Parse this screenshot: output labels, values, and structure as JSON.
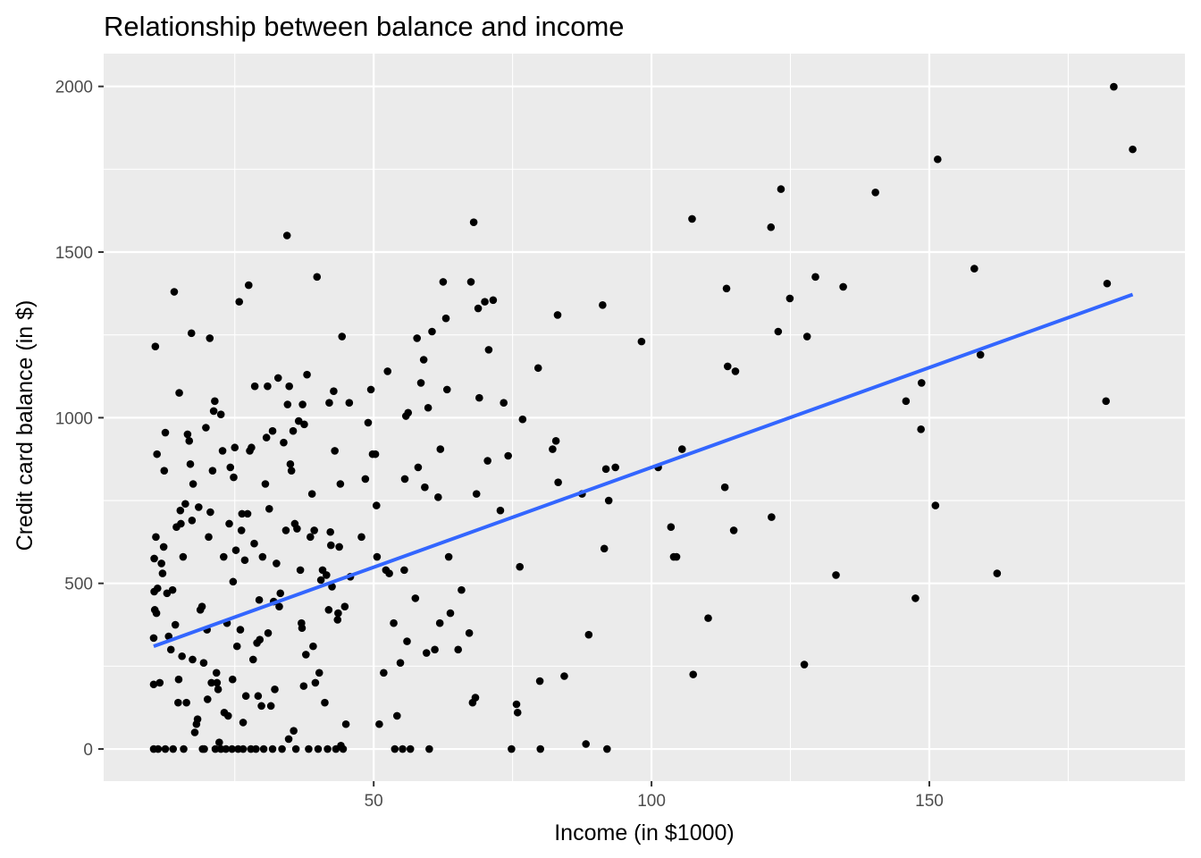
{
  "chart_data": {
    "type": "scatter",
    "title": "Relationship between balance and income",
    "xlabel": "Income (in $1000)",
    "ylabel": "Credit card balance (in $)",
    "xlim": [
      1.4,
      196.0
    ],
    "ylim": [
      -97,
      2099
    ],
    "x_ticks": [
      50,
      100,
      150
    ],
    "y_ticks": [
      0,
      500,
      1000,
      1500,
      2000
    ],
    "grid": true,
    "legend": "none",
    "colors": {
      "panel": "#ebebeb",
      "grid": "#ffffff",
      "point": "#000000",
      "fit_line": "#3366ff",
      "tick_text": "#4d4d4d"
    },
    "fit_line": {
      "x": [
        10.4,
        186.6
      ],
      "y": [
        310,
        1372
      ]
    },
    "points": [
      [
        10.4,
        335
      ],
      [
        10.4,
        195
      ],
      [
        10.4,
        0
      ],
      [
        10.5,
        575
      ],
      [
        10.5,
        475
      ],
      [
        10.6,
        420
      ],
      [
        10.7,
        1215
      ],
      [
        10.8,
        640
      ],
      [
        10.9,
        410
      ],
      [
        11.0,
        890
      ],
      [
        11.1,
        485
      ],
      [
        11.2,
        0
      ],
      [
        11.5,
        200
      ],
      [
        11.8,
        560
      ],
      [
        12.0,
        530
      ],
      [
        12.2,
        610
      ],
      [
        12.3,
        840
      ],
      [
        12.5,
        955
      ],
      [
        12.5,
        0
      ],
      [
        12.8,
        470
      ],
      [
        13.1,
        340
      ],
      [
        13.5,
        300
      ],
      [
        13.8,
        480
      ],
      [
        13.9,
        0
      ],
      [
        14.1,
        1380
      ],
      [
        14.3,
        375
      ],
      [
        14.5,
        670
      ],
      [
        14.8,
        140
      ],
      [
        14.9,
        210
      ],
      [
        15.0,
        1075
      ],
      [
        15.2,
        720
      ],
      [
        15.3,
        680
      ],
      [
        15.5,
        280
      ],
      [
        15.7,
        580
      ],
      [
        15.8,
        0
      ],
      [
        16.1,
        740
      ],
      [
        16.3,
        140
      ],
      [
        16.5,
        950
      ],
      [
        16.8,
        930
      ],
      [
        17.0,
        860
      ],
      [
        17.2,
        1255
      ],
      [
        17.3,
        690
      ],
      [
        17.4,
        270
      ],
      [
        17.5,
        800
      ],
      [
        17.8,
        50
      ],
      [
        18.1,
        75
      ],
      [
        18.3,
        90
      ],
      [
        18.5,
        730
      ],
      [
        18.8,
        420
      ],
      [
        19.1,
        430
      ],
      [
        19.2,
        0
      ],
      [
        19.4,
        260
      ],
      [
        19.5,
        0
      ],
      [
        19.8,
        970
      ],
      [
        20.0,
        360
      ],
      [
        20.1,
        150
      ],
      [
        20.3,
        640
      ],
      [
        20.5,
        1240
      ],
      [
        20.6,
        715
      ],
      [
        20.8,
        200
      ],
      [
        21.0,
        840
      ],
      [
        21.2,
        1020
      ],
      [
        21.4,
        1050
      ],
      [
        21.5,
        0
      ],
      [
        21.7,
        230
      ],
      [
        21.8,
        200
      ],
      [
        22.0,
        180
      ],
      [
        22.2,
        20
      ],
      [
        22.5,
        1010
      ],
      [
        22.5,
        0
      ],
      [
        22.8,
        900
      ],
      [
        23.0,
        580
      ],
      [
        23.1,
        110
      ],
      [
        23.4,
        0
      ],
      [
        23.6,
        380
      ],
      [
        23.8,
        100
      ],
      [
        24.0,
        680
      ],
      [
        24.2,
        850
      ],
      [
        24.5,
        0
      ],
      [
        24.6,
        210
      ],
      [
        24.7,
        505
      ],
      [
        24.8,
        820
      ],
      [
        25.0,
        910
      ],
      [
        25.2,
        600
      ],
      [
        25.4,
        310
      ],
      [
        25.6,
        0
      ],
      [
        25.8,
        1350
      ],
      [
        26.0,
        360
      ],
      [
        26.2,
        660
      ],
      [
        26.3,
        710
      ],
      [
        26.5,
        80
      ],
      [
        26.5,
        0
      ],
      [
        26.8,
        570
      ],
      [
        27.0,
        160
      ],
      [
        27.3,
        710
      ],
      [
        27.5,
        1400
      ],
      [
        27.7,
        900
      ],
      [
        27.9,
        0
      ],
      [
        28.0,
        910
      ],
      [
        28.3,
        270
      ],
      [
        28.5,
        620
      ],
      [
        28.6,
        1095
      ],
      [
        28.8,
        0
      ],
      [
        29.0,
        320
      ],
      [
        29.2,
        160
      ],
      [
        29.4,
        450
      ],
      [
        29.5,
        330
      ],
      [
        29.8,
        130
      ],
      [
        30.0,
        580
      ],
      [
        30.2,
        0
      ],
      [
        30.5,
        800
      ],
      [
        30.7,
        940
      ],
      [
        30.9,
        1095
      ],
      [
        31.0,
        350
      ],
      [
        31.2,
        725
      ],
      [
        31.5,
        130
      ],
      [
        31.8,
        960
      ],
      [
        31.8,
        0
      ],
      [
        32.0,
        445
      ],
      [
        32.2,
        180
      ],
      [
        32.5,
        560
      ],
      [
        32.8,
        1120
      ],
      [
        33.0,
        430
      ],
      [
        33.2,
        470
      ],
      [
        33.5,
        0
      ],
      [
        33.8,
        925
      ],
      [
        34.2,
        660
      ],
      [
        34.4,
        1550
      ],
      [
        34.5,
        1040
      ],
      [
        34.7,
        30
      ],
      [
        34.8,
        1095
      ],
      [
        35.0,
        860
      ],
      [
        35.2,
        840
      ],
      [
        35.5,
        960
      ],
      [
        35.6,
        55
      ],
      [
        35.8,
        680
      ],
      [
        36.0,
        0
      ],
      [
        36.2,
        665
      ],
      [
        36.5,
        990
      ],
      [
        36.8,
        540
      ],
      [
        37.0,
        380
      ],
      [
        37.1,
        365
      ],
      [
        37.2,
        1040
      ],
      [
        37.4,
        190
      ],
      [
        37.5,
        980
      ],
      [
        37.8,
        285
      ],
      [
        38.0,
        1130
      ],
      [
        38.3,
        0
      ],
      [
        38.6,
        640
      ],
      [
        38.9,
        770
      ],
      [
        39.1,
        310
      ],
      [
        39.3,
        660
      ],
      [
        39.5,
        200
      ],
      [
        39.8,
        1425
      ],
      [
        40.0,
        0
      ],
      [
        40.2,
        230
      ],
      [
        40.5,
        510
      ],
      [
        40.8,
        540
      ],
      [
        41.2,
        140
      ],
      [
        41.5,
        525
      ],
      [
        41.7,
        0
      ],
      [
        41.9,
        420
      ],
      [
        42.0,
        1045
      ],
      [
        42.2,
        655
      ],
      [
        42.3,
        615
      ],
      [
        42.5,
        490
      ],
      [
        42.8,
        1080
      ],
      [
        43.0,
        900
      ],
      [
        43.2,
        0
      ],
      [
        43.5,
        390
      ],
      [
        43.6,
        410
      ],
      [
        43.8,
        610
      ],
      [
        44.0,
        800
      ],
      [
        44.1,
        10
      ],
      [
        44.3,
        1245
      ],
      [
        44.5,
        0
      ],
      [
        44.8,
        430
      ],
      [
        45.0,
        75
      ],
      [
        45.6,
        1045
      ],
      [
        45.8,
        520
      ],
      [
        47.8,
        640
      ],
      [
        48.5,
        815
      ],
      [
        49.0,
        985
      ],
      [
        49.5,
        1085
      ],
      [
        49.8,
        890
      ],
      [
        50.3,
        890
      ],
      [
        50.5,
        735
      ],
      [
        50.6,
        580
      ],
      [
        51.0,
        75
      ],
      [
        51.8,
        230
      ],
      [
        52.2,
        540
      ],
      [
        52.5,
        1140
      ],
      [
        52.8,
        530
      ],
      [
        53.6,
        380
      ],
      [
        53.8,
        0
      ],
      [
        54.2,
        100
      ],
      [
        54.8,
        260
      ],
      [
        55.2,
        0
      ],
      [
        55.5,
        540
      ],
      [
        55.6,
        815
      ],
      [
        55.8,
        1005
      ],
      [
        56.0,
        325
      ],
      [
        56.2,
        1015
      ],
      [
        56.6,
        0
      ],
      [
        57.5,
        455
      ],
      [
        57.8,
        1240
      ],
      [
        58.0,
        850
      ],
      [
        58.5,
        1105
      ],
      [
        59.0,
        1175
      ],
      [
        59.2,
        790
      ],
      [
        59.5,
        290
      ],
      [
        59.8,
        1030
      ],
      [
        60.0,
        0
      ],
      [
        60.5,
        1260
      ],
      [
        61.0,
        300
      ],
      [
        61.6,
        760
      ],
      [
        61.9,
        380
      ],
      [
        62.0,
        905
      ],
      [
        62.5,
        1410
      ],
      [
        63.0,
        1300
      ],
      [
        63.2,
        1085
      ],
      [
        63.5,
        580
      ],
      [
        63.8,
        410
      ],
      [
        65.2,
        300
      ],
      [
        65.8,
        480
      ],
      [
        67.2,
        350
      ],
      [
        67.5,
        1410
      ],
      [
        67.8,
        140
      ],
      [
        68.0,
        1590
      ],
      [
        68.3,
        155
      ],
      [
        68.5,
        770
      ],
      [
        68.8,
        1330
      ],
      [
        69.0,
        1060
      ],
      [
        70.0,
        1350
      ],
      [
        70.5,
        870
      ],
      [
        70.7,
        1205
      ],
      [
        71.5,
        1355
      ],
      [
        72.8,
        720
      ],
      [
        73.4,
        1045
      ],
      [
        74.2,
        885
      ],
      [
        74.8,
        0
      ],
      [
        75.7,
        135
      ],
      [
        75.9,
        110
      ],
      [
        76.3,
        550
      ],
      [
        76.8,
        995
      ],
      [
        79.6,
        1150
      ],
      [
        79.9,
        205
      ],
      [
        80.0,
        0
      ],
      [
        82.2,
        905
      ],
      [
        82.8,
        930
      ],
      [
        83.1,
        1310
      ],
      [
        83.2,
        805
      ],
      [
        84.3,
        220
      ],
      [
        87.5,
        770
      ],
      [
        88.2,
        15
      ],
      [
        88.7,
        345
      ],
      [
        91.2,
        1340
      ],
      [
        91.5,
        605
      ],
      [
        91.8,
        845
      ],
      [
        92.0,
        0
      ],
      [
        92.3,
        750
      ],
      [
        93.5,
        850
      ],
      [
        98.2,
        1230
      ],
      [
        101.2,
        850
      ],
      [
        103.5,
        670
      ],
      [
        104.0,
        580
      ],
      [
        104.5,
        580
      ],
      [
        105.5,
        905
      ],
      [
        107.3,
        1600
      ],
      [
        107.5,
        225
      ],
      [
        110.2,
        395
      ],
      [
        113.2,
        790
      ],
      [
        113.5,
        1390
      ],
      [
        113.7,
        1155
      ],
      [
        114.8,
        660
      ],
      [
        115.1,
        1140
      ],
      [
        121.5,
        1575
      ],
      [
        121.6,
        700
      ],
      [
        122.8,
        1260
      ],
      [
        123.3,
        1690
      ],
      [
        124.9,
        1360
      ],
      [
        127.5,
        255
      ],
      [
        128.0,
        1245
      ],
      [
        129.5,
        1425
      ],
      [
        133.2,
        525
      ],
      [
        134.5,
        1395
      ],
      [
        140.3,
        1680
      ],
      [
        145.8,
        1050
      ],
      [
        147.5,
        455
      ],
      [
        148.5,
        965
      ],
      [
        148.6,
        1105
      ],
      [
        151.1,
        735
      ],
      [
        151.5,
        1780
      ],
      [
        158.1,
        1450
      ],
      [
        159.2,
        1190
      ],
      [
        162.2,
        530
      ],
      [
        181.8,
        1050
      ],
      [
        182.0,
        1405
      ],
      [
        183.2,
        1999
      ],
      [
        186.6,
        1810
      ]
    ]
  }
}
